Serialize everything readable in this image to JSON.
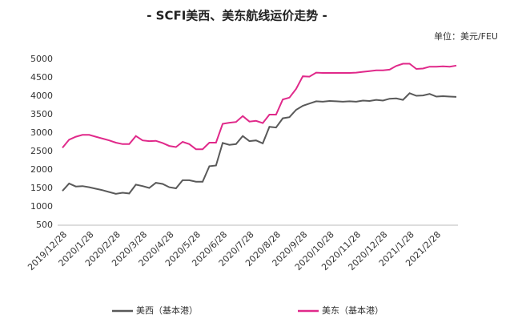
{
  "chart_data": {
    "type": "line",
    "title": "- SCFI美西、美东航线运价走势 -",
    "unit_label": "单位：美元/FEU",
    "categories": [
      "2019/12/28",
      null,
      null,
      null,
      "2020/1/28",
      null,
      null,
      null,
      "2020/2/28",
      null,
      null,
      null,
      "2020/3/28",
      null,
      null,
      null,
      "2020/4/28",
      null,
      null,
      null,
      "2020/5/28",
      null,
      null,
      null,
      "2020/6/28",
      null,
      null,
      null,
      "2020/7/28",
      null,
      null,
      null,
      "2020/8/28",
      null,
      null,
      null,
      "2020/9/28",
      null,
      null,
      null,
      "2020/10/28",
      null,
      null,
      null,
      "2020/11/28",
      null,
      null,
      null,
      "2020/12/28",
      null,
      null,
      null,
      "2021/1/28",
      null,
      null,
      null,
      "2021/2/28",
      null,
      null,
      null
    ],
    "series": [
      {
        "name": "美西（基本港）",
        "color": "#595959",
        "values": [
          1430,
          1630,
          1550,
          1560,
          1530,
          1490,
          1450,
          1400,
          1350,
          1380,
          1360,
          1600,
          1560,
          1510,
          1650,
          1620,
          1530,
          1500,
          1720,
          1720,
          1680,
          1680,
          2100,
          2120,
          2730,
          2680,
          2700,
          2920,
          2780,
          2800,
          2720,
          3170,
          3150,
          3400,
          3430,
          3630,
          3740,
          3800,
          3860,
          3850,
          3870,
          3860,
          3850,
          3860,
          3850,
          3880,
          3870,
          3900,
          3880,
          3930,
          3940,
          3900,
          4080,
          4010,
          4020,
          4060,
          3990,
          4000,
          3990,
          3980
        ]
      },
      {
        "name": "美东（基本港）",
        "color": "#e0298a",
        "values": [
          2600,
          2820,
          2900,
          2950,
          2950,
          2900,
          2850,
          2800,
          2740,
          2700,
          2700,
          2920,
          2800,
          2780,
          2790,
          2730,
          2650,
          2620,
          2760,
          2700,
          2560,
          2560,
          2740,
          2740,
          3250,
          3280,
          3300,
          3460,
          3310,
          3330,
          3270,
          3500,
          3500,
          3910,
          3960,
          4200,
          4540,
          4530,
          4640,
          4630,
          4630,
          4630,
          4630,
          4630,
          4640,
          4660,
          4680,
          4700,
          4700,
          4720,
          4820,
          4880,
          4880,
          4740,
          4750,
          4800,
          4800,
          4810,
          4800,
          4830
        ]
      }
    ],
    "ylim": [
      500,
      5000
    ],
    "yticks": [
      500,
      1000,
      1500,
      2000,
      2500,
      3000,
      3500,
      4000,
      4500,
      5000
    ],
    "grid": false
  }
}
